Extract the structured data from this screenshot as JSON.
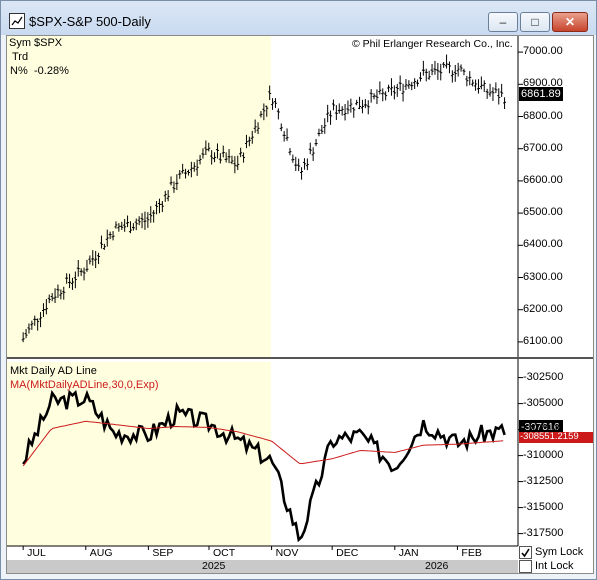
{
  "window": {
    "title": "$SPX-S&P 500-Daily",
    "min_glyph": "–",
    "max_glyph": "□",
    "close_glyph": "✕"
  },
  "price_panel": {
    "sym_label": "Sym",
    "sym_value": "$SPX",
    "trd_label": "Trd",
    "n_label": "N%",
    "n_value": "-0.28%",
    "copyright": "© Phil Erlanger Research Co., Inc.",
    "last_value": "6861.89",
    "y_ticks": [
      "7000.00",
      "6900.00",
      "6800.00",
      "6700.00",
      "6600.00",
      "6500.00",
      "6400.00",
      "6300.00",
      "6200.00",
      "6100.00"
    ]
  },
  "ad_panel": {
    "title": "Mkt Daily AD Line",
    "ma_label": "MA(MktDailyADLine,30,0,Exp)",
    "last_value": "-307616",
    "ma_last_value": "-308551.2159",
    "y_ticks": [
      "-302500",
      "-305000",
      "-307500",
      "-310000",
      "-312500",
      "-315000",
      "-317500"
    ]
  },
  "x_axis": {
    "months": [
      "JUL",
      "AUG",
      "SEP",
      "OCT",
      "NOV",
      "DEC",
      "JAN",
      "FEB"
    ],
    "years": [
      "2025",
      "2026"
    ]
  },
  "controls": {
    "sym_lock_label": "Sym Lock",
    "sym_lock_checked": true,
    "int_lock_label": "Int Lock",
    "int_lock_checked": false
  },
  "colors": {
    "highlight_bg": "#ffffe0",
    "ad_line": "#000000",
    "ma_line": "#cc1a1a",
    "ma_label": "#cc1a1a"
  },
  "chart_data": [
    {
      "type": "line",
      "title": "$SPX-S&P 500-Daily",
      "x": [
        "2025-07-01",
        "2025-07-15",
        "2025-08-01",
        "2025-08-15",
        "2025-09-01",
        "2025-09-15",
        "2025-10-01",
        "2025-10-15",
        "2025-11-01",
        "2025-11-15",
        "2025-12-01",
        "2025-12-15",
        "2026-01-01",
        "2026-01-15",
        "2026-02-01",
        "2026-02-15",
        "2026-02-25"
      ],
      "series": [
        {
          "values": [
            6110,
            6240,
            6330,
            6450,
            6480,
            6600,
            6690,
            6650,
            6870,
            6620,
            6820,
            6840,
            6880,
            6930,
            6950,
            6880,
            6861.89
          ]
        }
      ],
      "ylim": [
        6050,
        7050
      ],
      "grid": false
    },
    {
      "type": "line",
      "title": "Mkt Daily AD Line",
      "x": [
        "2025-07-01",
        "2025-07-15",
        "2025-08-01",
        "2025-08-15",
        "2025-09-01",
        "2025-09-15",
        "2025-10-01",
        "2025-10-15",
        "2025-11-01",
        "2025-11-15",
        "2025-12-01",
        "2025-12-15",
        "2026-01-01",
        "2026-01-15",
        "2026-02-01",
        "2026-02-15",
        "2026-02-25"
      ],
      "series": [
        {
          "values": [
            -310500,
            -304800,
            -304500,
            -307800,
            -308000,
            -306000,
            -306900,
            -308500,
            -310500,
            -318000,
            -308500,
            -308000,
            -311000,
            -306800,
            -308800,
            -307800,
            -307616
          ]
        },
        {
          "name": "MA(MktDailyADLine,30,0,Exp)",
          "values": [
            -311000,
            -307400,
            -306700,
            -307000,
            -307400,
            -307200,
            -307300,
            -307700,
            -308600,
            -310800,
            -310300,
            -309500,
            -309700,
            -309000,
            -308900,
            -308700,
            -308551.2159
          ]
        }
      ],
      "ylim": [
        -318500,
        -301000
      ],
      "grid": false
    }
  ]
}
